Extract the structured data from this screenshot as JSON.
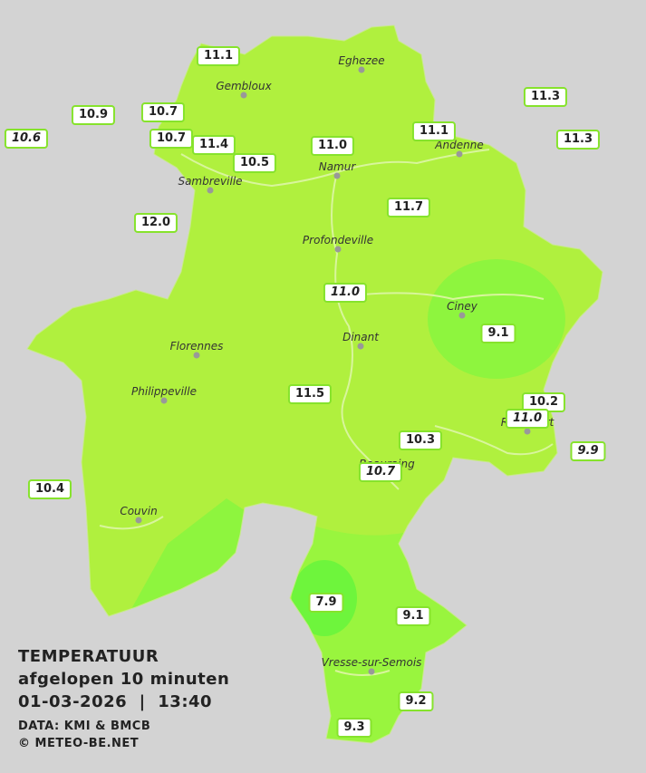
{
  "towns": [
    "Eghezee",
    "Gembloux",
    "Andenne",
    "Namur",
    "Sambreville",
    "Profondeville",
    "Ciney",
    "Dinant",
    "Florennes",
    "Philippeville",
    "Rochefort",
    "Beauraing",
    "Couvin",
    "Vresse-sur-Semois"
  ],
  "stations": [
    "11.1",
    "10.9",
    "10.7",
    "10.6",
    "10.7",
    "11.4",
    "10.5",
    "11.0",
    "11.1",
    "11.3",
    "11.3",
    "12.0",
    "11.7",
    "11.0",
    "9.1",
    "11.5",
    "10.2",
    "11.0",
    "10.3",
    "9.9",
    "10.7",
    "10.4",
    "7.9",
    "9.1",
    "9.2",
    "9.3"
  ],
  "legend": {
    "title": "TEMPERATUUR",
    "subtitle": "afgelopen 10 minuten",
    "datetime": "01-03-2026  |  13:40",
    "source": "DATA: KMI & BMCB",
    "copyright": "© METEO-BE.NET"
  }
}
